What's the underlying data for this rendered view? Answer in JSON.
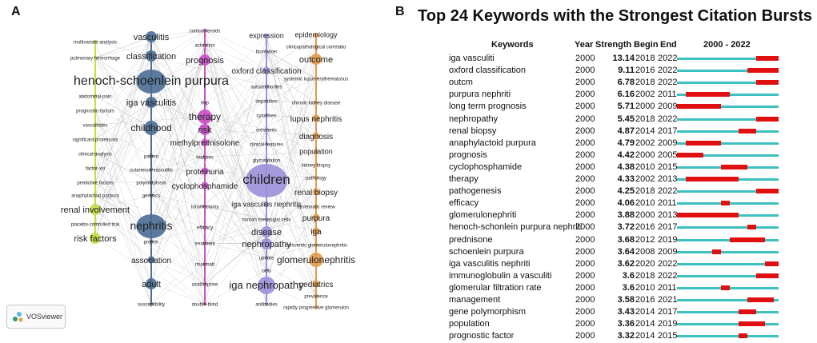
{
  "panel_a": {
    "letter": "A",
    "vosviewer_label": "VOSviewer",
    "nodes": [
      {
        "label": "multivariate-analysis",
        "color": "#c6db45",
        "size": 8
      },
      {
        "label": "pulmonary hemorrhage",
        "color": "#c6db45",
        "size": 8
      },
      {
        "label": "abdominal-pain",
        "color": "#c6db45",
        "size": 8
      },
      {
        "label": "prognostic-factors",
        "color": "#c6db45",
        "size": 8
      },
      {
        "label": "vasculitides",
        "color": "#c6db45",
        "size": 8
      },
      {
        "label": "significant proteinuria",
        "color": "#c6db45",
        "size": 8
      },
      {
        "label": "clinical-analysis",
        "color": "#c6db45",
        "size": 8
      },
      {
        "label": "factor-xiii",
        "color": "#c6db45",
        "size": 8
      },
      {
        "label": "predictive factors",
        "color": "#c6db45",
        "size": 8
      },
      {
        "label": "anaphylactoid purpura",
        "color": "#c6db45",
        "size": 8
      },
      {
        "label": "renal involvement",
        "color": "#c6db45",
        "size": 11
      },
      {
        "label": "placebo-controlled trial",
        "color": "#c6db45",
        "size": 8
      },
      {
        "label": "risk factors",
        "color": "#c6db45",
        "size": 11
      },
      {
        "label": "vasculitis",
        "color": "#4a6d94",
        "size": 11
      },
      {
        "label": "classification",
        "color": "#4a6d94",
        "size": 11
      },
      {
        "label": "henoch-schoenlein purpura",
        "color": "#4a6d94",
        "size": 16
      },
      {
        "label": "iga vasculitis",
        "color": "#4a6d94",
        "size": 11
      },
      {
        "label": "childhood",
        "color": "#4a6d94",
        "size": 12
      },
      {
        "label": "patient",
        "color": "#4a6d94",
        "size": 8
      },
      {
        "label": "cutaneous vasculitis",
        "color": "#4a6d94",
        "size": 8
      },
      {
        "label": "polymorphism",
        "color": "#4a6d94",
        "size": 8
      },
      {
        "label": "genetics",
        "color": "#4a6d94",
        "size": 8
      },
      {
        "label": "nephritis",
        "color": "#4a6d94",
        "size": 14
      },
      {
        "label": "protein",
        "color": "#4a6d94",
        "size": 8
      },
      {
        "label": "association",
        "color": "#4a6d94",
        "size": 10
      },
      {
        "label": "adult",
        "color": "#4a6d94",
        "size": 11
      },
      {
        "label": "susceptibility",
        "color": "#4a6d94",
        "size": 8
      },
      {
        "label": "corticosteroids",
        "color": "#c94fc9",
        "size": 8
      },
      {
        "label": "activation",
        "color": "#c94fc9",
        "size": 8
      },
      {
        "label": "prognosis",
        "color": "#c94fc9",
        "size": 11
      },
      {
        "label": "hsp",
        "color": "#c94fc9",
        "size": 8
      },
      {
        "label": "therapy",
        "color": "#c94fc9",
        "size": 12
      },
      {
        "label": "risk",
        "color": "#c94fc9",
        "size": 11
      },
      {
        "label": "methylprednisolone",
        "color": "#c94fc9",
        "size": 10
      },
      {
        "label": "features",
        "color": "#c94fc9",
        "size": 8
      },
      {
        "label": "proteinuria",
        "color": "#c94fc9",
        "size": 10
      },
      {
        "label": "cyclophosphamide",
        "color": "#c94fc9",
        "size": 10
      },
      {
        "label": "tonsillectomy",
        "color": "#c94fc9",
        "size": 8
      },
      {
        "label": "efficacy",
        "color": "#c94fc9",
        "size": 8
      },
      {
        "label": "treatment",
        "color": "#c94fc9",
        "size": 8
      },
      {
        "label": "rituximab",
        "color": "#c94fc9",
        "size": 8
      },
      {
        "label": "azathioprine",
        "color": "#c94fc9",
        "size": 8
      },
      {
        "label": "double-blind",
        "color": "#c94fc9",
        "size": 8
      },
      {
        "label": "expression",
        "color": "#9a8fd8",
        "size": 9
      },
      {
        "label": "biomarker",
        "color": "#9a8fd8",
        "size": 8
      },
      {
        "label": "oxford classification",
        "color": "#9a8fd8",
        "size": 10
      },
      {
        "label": "autoantibodies",
        "color": "#9a8fd8",
        "size": 8
      },
      {
        "label": "deposition",
        "color": "#9a8fd8",
        "size": 8
      },
      {
        "label": "cytokines",
        "color": "#9a8fd8",
        "size": 8
      },
      {
        "label": "crescents",
        "color": "#9a8fd8",
        "size": 8
      },
      {
        "label": "clinical-features",
        "color": "#9a8fd8",
        "size": 8
      },
      {
        "label": "glycosylation",
        "color": "#9a8fd8",
        "size": 8
      },
      {
        "label": "children",
        "color": "#9a8fd8",
        "size": 17
      },
      {
        "label": "iga vasculitis nephritis",
        "color": "#9a8fd8",
        "size": 9
      },
      {
        "label": "human mesangial cells",
        "color": "#9a8fd8",
        "size": 8
      },
      {
        "label": "disease",
        "color": "#9a8fd8",
        "size": 11
      },
      {
        "label": "nephropathy",
        "color": "#9a8fd8",
        "size": 11
      },
      {
        "label": "update",
        "color": "#9a8fd8",
        "size": 8
      },
      {
        "label": "cells",
        "color": "#9a8fd8",
        "size": 8
      },
      {
        "label": "iga nephropathy",
        "color": "#9a8fd8",
        "size": 13
      },
      {
        "label": "antibodies",
        "color": "#9a8fd8",
        "size": 8
      },
      {
        "label": "epidemiology",
        "color": "#e29a4c",
        "size": 9
      },
      {
        "label": "clinicopathological correlatio",
        "color": "#e29a4c",
        "size": 8
      },
      {
        "label": "outcome",
        "color": "#e29a4c",
        "size": 11
      },
      {
        "label": "systemic lupus-erythematosus",
        "color": "#e29a4c",
        "size": 8
      },
      {
        "label": "chronic kidney disease",
        "color": "#e29a4c",
        "size": 8
      },
      {
        "label": "lupus nephritis",
        "color": "#e29a4c",
        "size": 10
      },
      {
        "label": "diagnosis",
        "color": "#e29a4c",
        "size": 10
      },
      {
        "label": "population",
        "color": "#e29a4c",
        "size": 9
      },
      {
        "label": "kidney biopsy",
        "color": "#e29a4c",
        "size": 8
      },
      {
        "label": "pathology",
        "color": "#e29a4c",
        "size": 8
      },
      {
        "label": "renal biopsy",
        "color": "#e29a4c",
        "size": 10
      },
      {
        "label": "systematic review",
        "color": "#e29a4c",
        "size": 8
      },
      {
        "label": "purpura",
        "color": "#e29a4c",
        "size": 10
      },
      {
        "label": "iga",
        "color": "#e29a4c",
        "size": 10
      },
      {
        "label": "crescentic glomerulonephritis",
        "color": "#e29a4c",
        "size": 8
      },
      {
        "label": "glomerulonephritis",
        "color": "#e29a4c",
        "size": 12
      },
      {
        "label": "pediatrics",
        "color": "#e29a4c",
        "size": 10
      },
      {
        "label": "prevalence",
        "color": "#e29a4c",
        "size": 8
      },
      {
        "label": "rapidly progressive glomerulon",
        "color": "#e29a4c",
        "size": 8
      }
    ]
  },
  "panel_b": {
    "letter": "B",
    "title": "Top 24 Keywords with the Strongest Citation Bursts",
    "headers": {
      "keywords": "Keywords",
      "year": "Year",
      "strength": "Strength",
      "begin": "Begin",
      "end": "End",
      "range": "2000 - 2022"
    },
    "range_start": 2000,
    "range_end": 2022,
    "line_color": "#3cc0c0",
    "burst_color": "#e01010",
    "rows": [
      {
        "keyword": "iga vasculiti",
        "year": "2000",
        "strength": "13.14",
        "begin": "2018",
        "end": "2022"
      },
      {
        "keyword": "oxford classification",
        "year": "2000",
        "strength": "9.11",
        "begin": "2016",
        "end": "2022"
      },
      {
        "keyword": "outcm",
        "year": "2000",
        "strength": "6.78",
        "begin": "2018",
        "end": "2022"
      },
      {
        "keyword": "purpura nephriti",
        "year": "2000",
        "strength": "6.16",
        "begin": "2002",
        "end": "2011"
      },
      {
        "keyword": "long term prognosis",
        "year": "2000",
        "strength": "5.71",
        "begin": "2000",
        "end": "2009"
      },
      {
        "keyword": "nephropathy",
        "year": "2000",
        "strength": "5.45",
        "begin": "2018",
        "end": "2022"
      },
      {
        "keyword": "renal biopsy",
        "year": "2000",
        "strength": "4.87",
        "begin": "2014",
        "end": "2017"
      },
      {
        "keyword": "anaphylactoid purpura",
        "year": "2000",
        "strength": "4.79",
        "begin": "2002",
        "end": "2009"
      },
      {
        "keyword": "prognosis",
        "year": "2000",
        "strength": "4.42",
        "begin": "2000",
        "end": "2005"
      },
      {
        "keyword": "cyclophosphamide",
        "year": "2000",
        "strength": "4.38",
        "begin": "2010",
        "end": "2015"
      },
      {
        "keyword": "therapy",
        "year": "2000",
        "strength": "4.33",
        "begin": "2002",
        "end": "2013"
      },
      {
        "keyword": "pathogenesis",
        "year": "2000",
        "strength": "4.25",
        "begin": "2018",
        "end": "2022"
      },
      {
        "keyword": "efficacy",
        "year": "2000",
        "strength": "4.06",
        "begin": "2010",
        "end": "2011"
      },
      {
        "keyword": "glomerulonephriti",
        "year": "2000",
        "strength": "3.88",
        "begin": "2000",
        "end": "2013"
      },
      {
        "keyword": "henoch-schonlein purpura nephriti",
        "year": "2000",
        "strength": "3.72",
        "begin": "2016",
        "end": "2017"
      },
      {
        "keyword": "prednisone",
        "year": "2000",
        "strength": "3.68",
        "begin": "2012",
        "end": "2019"
      },
      {
        "keyword": "schoenlein purpura",
        "year": "2000",
        "strength": "3.64",
        "begin": "2008",
        "end": "2009"
      },
      {
        "keyword": "iga vasculitis nephriti",
        "year": "2000",
        "strength": "3.62",
        "begin": "2020",
        "end": "2022"
      },
      {
        "keyword": "immunoglobulin a vasculiti",
        "year": "2000",
        "strength": "3.6",
        "begin": "2018",
        "end": "2022"
      },
      {
        "keyword": "glomerular filtration rate",
        "year": "2000",
        "strength": "3.6",
        "begin": "2010",
        "end": "2011"
      },
      {
        "keyword": "management",
        "year": "2000",
        "strength": "3.58",
        "begin": "2016",
        "end": "2021"
      },
      {
        "keyword": "gene polymorphism",
        "year": "2000",
        "strength": "3.43",
        "begin": "2014",
        "end": "2017"
      },
      {
        "keyword": "population",
        "year": "2000",
        "strength": "3.36",
        "begin": "2014",
        "end": "2019"
      },
      {
        "keyword": "prognostic factor",
        "year": "2000",
        "strength": "3.32",
        "begin": "2014",
        "end": "2015"
      }
    ]
  }
}
